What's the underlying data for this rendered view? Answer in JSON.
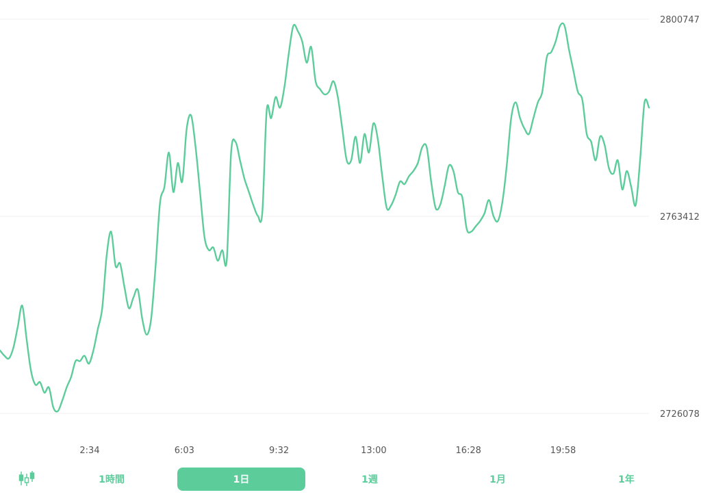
{
  "colors": {
    "accent": "#5ccc9a",
    "grid": "#efefef",
    "text": "#555555",
    "active_text": "#ffffff"
  },
  "chart_data": {
    "type": "line",
    "grid": true,
    "ylim": [
      2726078,
      2800747
    ],
    "y_ticks": [
      "2800747",
      "2763412",
      "2726078"
    ],
    "x_ticks": [
      "2:34",
      "6:03",
      "9:32",
      "13:00",
      "16:28",
      "19:58"
    ],
    "series": [
      {
        "values": [
          2738000,
          2737000,
          2736500,
          2738500,
          2742500,
          2746500,
          2740000,
          2734000,
          2731500,
          2732000,
          2730000,
          2731000,
          2727200,
          2726500,
          2728500,
          2731000,
          2733000,
          2736000,
          2736000,
          2737000,
          2735500,
          2738000,
          2742000,
          2746000,
          2756000,
          2760500,
          2754000,
          2754500,
          2750000,
          2746000,
          2748000,
          2749500,
          2744000,
          2741000,
          2744000,
          2754000,
          2766000,
          2769000,
          2775500,
          2768000,
          2773500,
          2770000,
          2780000,
          2782500,
          2776500,
          2768000,
          2759500,
          2757000,
          2757500,
          2755000,
          2757000,
          2755000,
          2775500,
          2777500,
          2774000,
          2770500,
          2768000,
          2765500,
          2763500,
          2764000,
          2783500,
          2782000,
          2786000,
          2784000,
          2788000,
          2794500,
          2799500,
          2798500,
          2796500,
          2792500,
          2795500,
          2789000,
          2787500,
          2786500,
          2787000,
          2789000,
          2786000,
          2780000,
          2774000,
          2774000,
          2778500,
          2773500,
          2779000,
          2775500,
          2781000,
          2778000,
          2771000,
          2765000,
          2765500,
          2767500,
          2770000,
          2769500,
          2771000,
          2772000,
          2773500,
          2776500,
          2776500,
          2770000,
          2765000,
          2765500,
          2769000,
          2773000,
          2772000,
          2768000,
          2767000,
          2761000,
          2760500,
          2761500,
          2762500,
          2764000,
          2766500,
          2763500,
          2762500,
          2766000,
          2773000,
          2782000,
          2785000,
          2782000,
          2780000,
          2779000,
          2782000,
          2785000,
          2787000,
          2793500,
          2794500,
          2796500,
          2799500,
          2799500,
          2795000,
          2791000,
          2787000,
          2785500,
          2779000,
          2777500,
          2774000,
          2778500,
          2777000,
          2772500,
          2771500,
          2774000,
          2768500,
          2772000,
          2769000,
          2765500,
          2774000,
          2785000,
          2784000
        ]
      }
    ]
  },
  "controls": {
    "candle_icon": "candlestick-icon",
    "ranges": [
      {
        "label": "1時間",
        "active": false
      },
      {
        "label": "1日",
        "active": true
      },
      {
        "label": "1週",
        "active": false
      },
      {
        "label": "1月",
        "active": false
      },
      {
        "label": "1年",
        "active": false
      }
    ]
  }
}
